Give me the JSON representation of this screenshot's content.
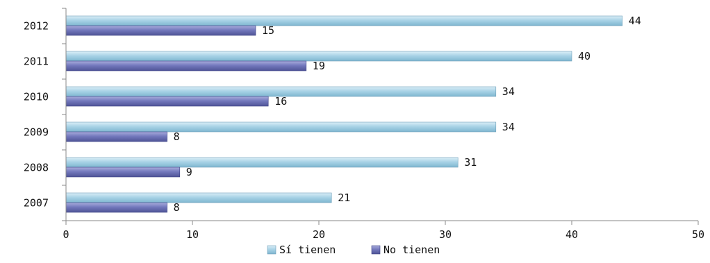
{
  "chart_data": {
    "type": "bar",
    "orientation": "horizontal",
    "categories": [
      "2012",
      "2011",
      "2010",
      "2009",
      "2008",
      "2007"
    ],
    "series": [
      {
        "name": "Sí tienen",
        "values": [
          44,
          40,
          34,
          34,
          31,
          21
        ],
        "color": "#9ccbe1"
      },
      {
        "name": "No tienen",
        "values": [
          15,
          19,
          16,
          8,
          9,
          8
        ],
        "color": "#6f74b8"
      }
    ],
    "xlim": [
      0,
      50
    ],
    "xticks": [
      0,
      10,
      20,
      30,
      40,
      50
    ],
    "title": "",
    "xlabel": "",
    "ylabel": "",
    "grid": false,
    "legend_position": "bottom"
  }
}
